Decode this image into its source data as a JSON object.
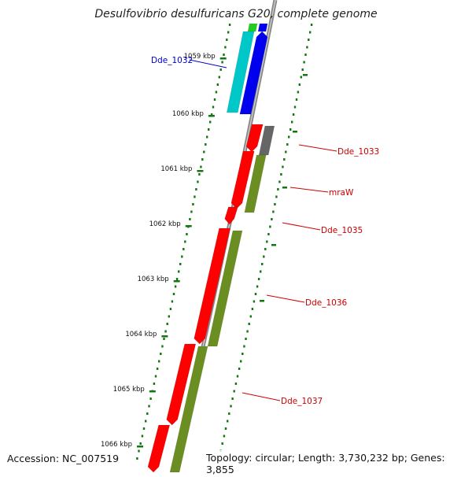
{
  "title": "Desulfovibrio desulfuricans G20, complete genome",
  "footer": {
    "accession": "Accession: NC_007519",
    "summary": "Topology: circular; Length: 3,730,232 bp; Genes: 3,855"
  },
  "scale_labels": [
    "1059 kbp",
    "1060 kbp",
    "1061 kbp",
    "1062 kbp",
    "1063 kbp",
    "1064 kbp",
    "1065 kbp",
    "1066 kbp"
  ],
  "gene_labels": [
    {
      "name": "Dde_1032",
      "color": "#0000cc"
    },
    {
      "name": "Dde_1033",
      "color": "#cc0000"
    },
    {
      "name": "mraW",
      "color": "#cc0000"
    },
    {
      "name": "Dde_1035",
      "color": "#cc0000"
    },
    {
      "name": "Dde_1036",
      "color": "#cc0000"
    },
    {
      "name": "Dde_1037",
      "color": "#cc0000"
    }
  ],
  "colors": {
    "cds": "#ff0000",
    "cog_olive": "#6b8e23",
    "cog_gray": "#666666",
    "cog_blue": "#0000ee",
    "cog_cyan": "#00c8c8",
    "cog_green": "#22cc22",
    "backbone": "#888888",
    "gc_ticks": "#117711"
  }
}
